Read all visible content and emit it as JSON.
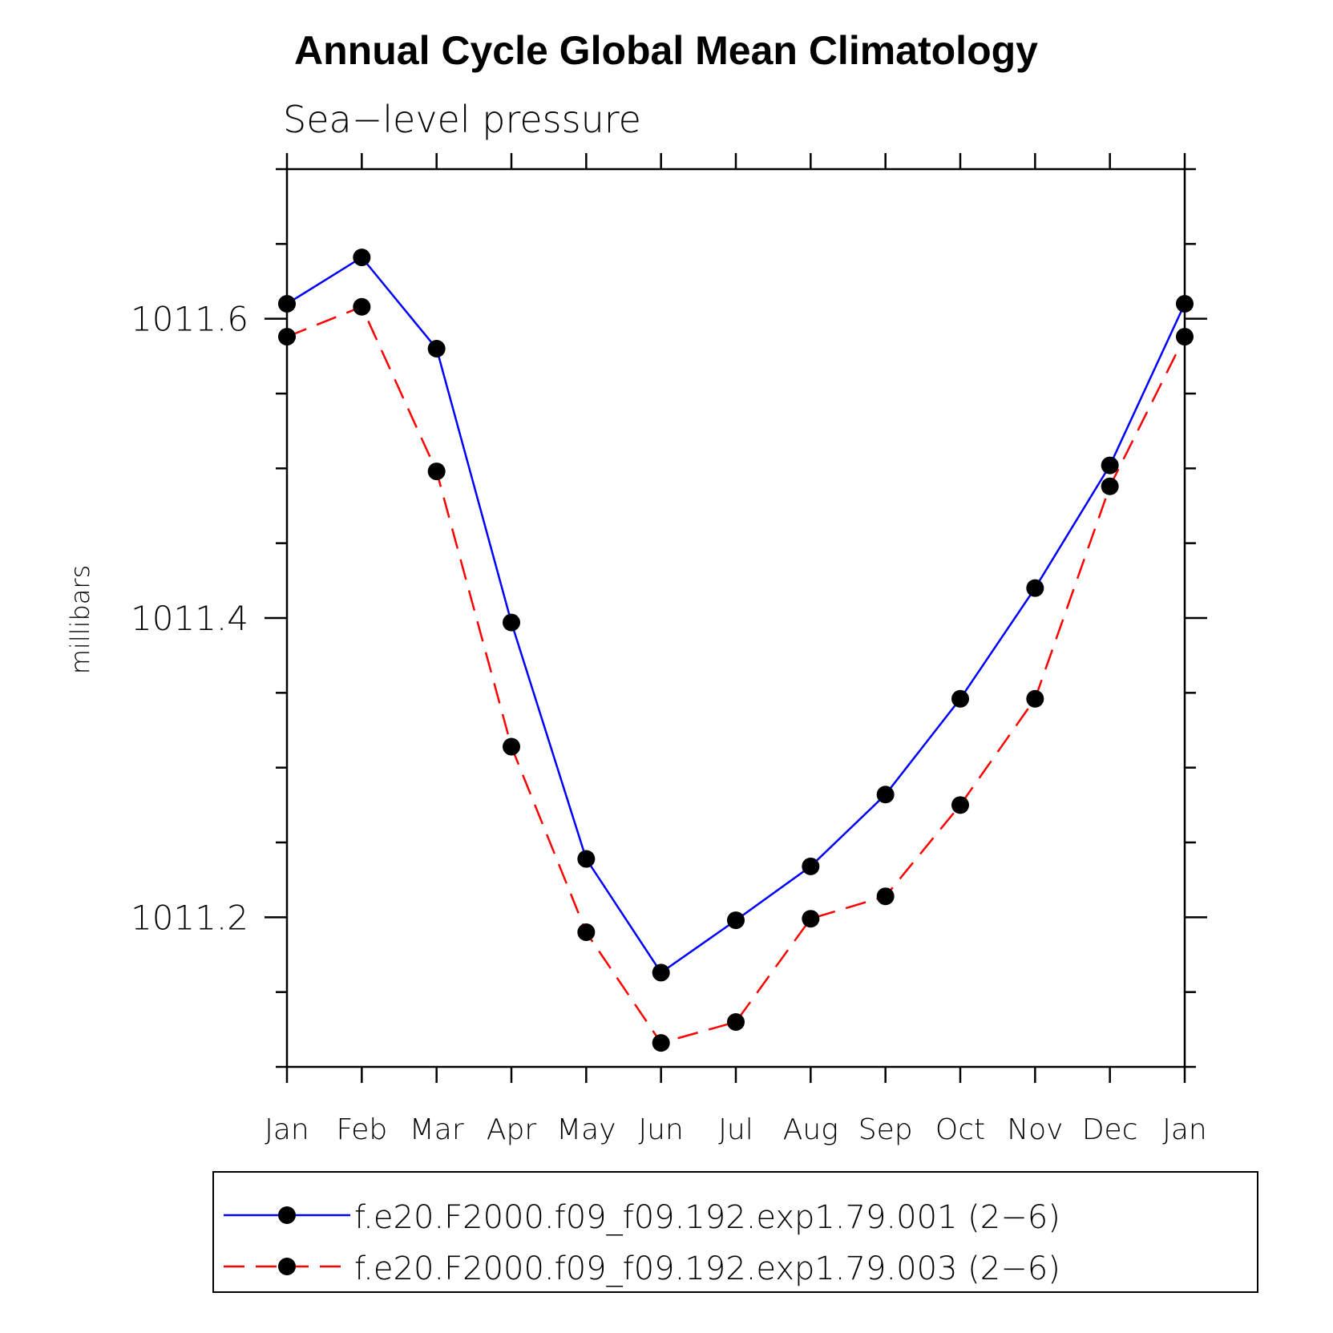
{
  "chart_data": {
    "type": "line",
    "title": "Annual Cycle Global Mean Climatology",
    "subtitle": "Sea−level pressure",
    "xlabel": "",
    "ylabel": "millibars",
    "categories": [
      "Jan",
      "Feb",
      "Mar",
      "Apr",
      "May",
      "Jun",
      "Jul",
      "Aug",
      "Sep",
      "Oct",
      "Nov",
      "Dec",
      "Jan"
    ],
    "yticks": [
      1011.2,
      1011.4,
      1011.6
    ],
    "ytick_labels": [
      "1011.2",
      "1011.4",
      "1011.6"
    ],
    "ylim": [
      1011.1,
      1011.7
    ],
    "grid": false,
    "legend_position": "bottom",
    "series": [
      {
        "name": "f.e20.F2000.f09_f09.192.exp1.79.001 (2−6)",
        "color": "#0000ff",
        "dash": "solid",
        "marker": "filled-circle",
        "values": [
          1011.61,
          1011.641,
          1011.58,
          1011.397,
          1011.239,
          1011.163,
          1011.198,
          1011.234,
          1011.282,
          1011.346,
          1011.42,
          1011.502,
          1011.61
        ]
      },
      {
        "name": "f.e20.F2000.f09_f09.192.exp1.79.003 (2−6)",
        "color": "#ff0000",
        "dash": "dashed",
        "marker": "filled-circle",
        "values": [
          1011.588,
          1011.608,
          1011.498,
          1011.314,
          1011.19,
          1011.116,
          1011.13,
          1011.199,
          1011.214,
          1011.275,
          1011.346,
          1011.488,
          1011.588
        ]
      }
    ]
  }
}
